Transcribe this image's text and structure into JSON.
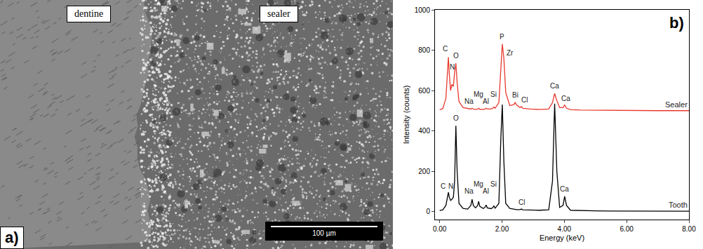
{
  "image": {
    "panel_label": "a)",
    "labels": [
      "dentine",
      "sealer"
    ],
    "scale_bar": "100 µm"
  },
  "chart_data": {
    "type": "line",
    "x_label": "Energy (keV)",
    "y_label": "Intensity (counts)",
    "annotations": [
      {
        "text": "b)"
      }
    ],
    "xlim": [
      -0.15,
      8
    ],
    "xticks": [
      {
        "value": 0,
        "label": "0.00"
      },
      {
        "value": 2,
        "label": "2.00"
      },
      {
        "value": 4,
        "label": "4.00"
      },
      {
        "value": 6,
        "label": "6.00"
      },
      {
        "value": 8,
        "label": "8.00"
      }
    ],
    "ylim": [
      -40,
      1000
    ],
    "yticks": [
      0,
      200,
      400,
      600,
      800,
      1000
    ],
    "grid": false,
    "x": [
      0.0,
      0.1,
      0.2,
      0.25,
      0.28,
      0.31,
      0.35,
      0.39,
      0.44,
      0.48,
      0.52,
      0.56,
      0.62,
      0.75,
      0.9,
      1.0,
      1.04,
      1.08,
      1.15,
      1.22,
      1.25,
      1.29,
      1.4,
      1.46,
      1.49,
      1.53,
      1.65,
      1.71,
      1.74,
      1.78,
      1.9,
      1.96,
      2.01,
      2.06,
      2.12,
      2.25,
      2.38,
      2.42,
      2.47,
      2.58,
      2.62,
      2.67,
      2.9,
      3.2,
      3.5,
      3.62,
      3.69,
      3.76,
      3.85,
      3.96,
      4.01,
      4.07,
      4.2,
      4.5,
      5.0,
      5.5,
      6.0,
      6.5,
      7.0,
      7.5,
      8.0
    ],
    "series": [
      {
        "name": "Sealer",
        "color": "#e8392e",
        "values": [
          505,
          510,
          560,
          720,
          765,
          680,
          600,
          630,
          620,
          690,
          735,
          640,
          545,
          515,
          510,
          508,
          512,
          508,
          506,
          508,
          512,
          507,
          506,
          508,
          512,
          508,
          508,
          512,
          518,
          512,
          540,
          720,
          830,
          760,
          590,
          525,
          530,
          540,
          528,
          515,
          520,
          512,
          508,
          506,
          508,
          540,
          585,
          550,
          515,
          515,
          528,
          512,
          505,
          503,
          502,
          501,
          501,
          500,
          500,
          500,
          500
        ],
        "annotations": [
          {
            "text": "C",
            "x": 0.18,
            "y": 780
          },
          {
            "text": "N",
            "x": 0.4,
            "y": 690
          },
          {
            "text": "O",
            "x": 0.53,
            "y": 745
          },
          {
            "text": "Na",
            "x": 0.95,
            "y": 520
          },
          {
            "text": "Mg",
            "x": 1.25,
            "y": 555
          },
          {
            "text": "Al",
            "x": 1.48,
            "y": 520
          },
          {
            "text": "Si",
            "x": 1.74,
            "y": 555
          },
          {
            "text": "P",
            "x": 2.01,
            "y": 840
          },
          {
            "text": "Zr",
            "x": 2.25,
            "y": 760
          },
          {
            "text": "Bi",
            "x": 2.42,
            "y": 550
          },
          {
            "text": "Cl",
            "x": 2.72,
            "y": 528
          },
          {
            "text": "Ca",
            "x": 3.69,
            "y": 595
          },
          {
            "text": "Ca",
            "x": 4.05,
            "y": 535
          }
        ]
      },
      {
        "name": "Tooth",
        "color": "#000000",
        "values": [
          5,
          8,
          30,
          80,
          95,
          70,
          55,
          60,
          70,
          150,
          425,
          200,
          40,
          15,
          12,
          30,
          60,
          30,
          18,
          30,
          50,
          25,
          15,
          22,
          32,
          18,
          14,
          20,
          28,
          16,
          40,
          350,
          530,
          250,
          40,
          15,
          10,
          10,
          9,
          9,
          12,
          8,
          7,
          6,
          8,
          150,
          535,
          200,
          20,
          30,
          75,
          30,
          6,
          4,
          3,
          2,
          2,
          1,
          1,
          1,
          1
        ],
        "annotations": [
          {
            "text": "C",
            "x": 0.12,
            "y": 100
          },
          {
            "text": "N",
            "x": 0.36,
            "y": 100
          },
          {
            "text": "O",
            "x": 0.52,
            "y": 435
          },
          {
            "text": "Na",
            "x": 0.95,
            "y": 75
          },
          {
            "text": "Mg",
            "x": 1.25,
            "y": 110
          },
          {
            "text": "Al",
            "x": 1.48,
            "y": 75
          },
          {
            "text": "Si",
            "x": 1.74,
            "y": 110
          },
          {
            "text": "Cl",
            "x": 2.62,
            "y": 20
          },
          {
            "text": "Ca",
            "x": 4.01,
            "y": 85
          }
        ]
      }
    ]
  }
}
